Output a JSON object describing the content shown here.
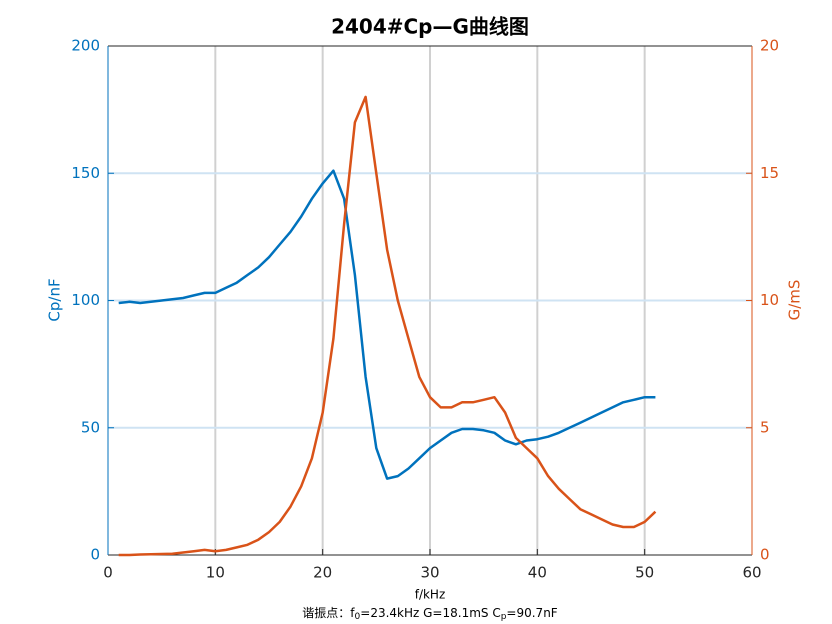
{
  "chart_data": {
    "type": "line",
    "title": "2404#Cp—G曲线图",
    "xlabel": "f/kHz",
    "ylabel": "Cp/nF",
    "y2label": "G/mS",
    "annotation": [
      "谐振点：f",
      "0",
      "=23.4kHz   G=18.1mS   C",
      "p",
      "=90.7nF"
    ],
    "x": [
      1,
      2,
      3,
      4,
      5,
      6,
      7,
      8,
      9,
      10,
      11,
      12,
      13,
      14,
      15,
      16,
      17,
      18,
      19,
      20,
      21,
      22,
      23,
      24,
      25,
      26,
      27,
      28,
      29,
      30,
      31,
      32,
      33,
      34,
      35,
      36,
      37,
      38,
      39,
      40,
      41,
      42,
      43,
      44,
      45,
      46,
      47,
      48,
      49,
      50,
      51
    ],
    "series": [
      {
        "name": "Cp",
        "color": "#0072BD",
        "axis": "y",
        "values": [
          99,
          99.5,
          99,
          99.5,
          100,
          100.5,
          101,
          102,
          103,
          103,
          105,
          107,
          110,
          113,
          117,
          122,
          127,
          133,
          140,
          146,
          151,
          140,
          110,
          70,
          42,
          30,
          31,
          34,
          38,
          42,
          45,
          48,
          49.5,
          49.5,
          49,
          48,
          45,
          43.5,
          45,
          45.5,
          46.5,
          48,
          50,
          52,
          54,
          56,
          58,
          60,
          61,
          62,
          62
        ]
      },
      {
        "name": "G",
        "color": "#D95319",
        "axis": "y2",
        "values": [
          0,
          0,
          0.02,
          0.03,
          0.04,
          0.05,
          0.1,
          0.15,
          0.2,
          0.15,
          0.2,
          0.3,
          0.4,
          0.6,
          0.9,
          1.3,
          1.9,
          2.7,
          3.8,
          5.6,
          8.5,
          13,
          17,
          18,
          15,
          12,
          10,
          8.5,
          7,
          6.2,
          5.8,
          5.8,
          6,
          6,
          6.1,
          6.2,
          5.6,
          4.6,
          4.2,
          3.8,
          3.1,
          2.6,
          2.2,
          1.8,
          1.6,
          1.4,
          1.2,
          1.1,
          1.1,
          1.3,
          1.7
        ]
      }
    ],
    "xlim": [
      0,
      60
    ],
    "xticks": [
      0,
      10,
      20,
      30,
      40,
      50,
      60
    ],
    "ylim": [
      0,
      200
    ],
    "yticks": [
      0,
      50,
      100,
      150,
      200
    ],
    "y2lim": [
      0,
      20
    ],
    "y2ticks": [
      0,
      5,
      10,
      15,
      20
    ],
    "grid": true
  }
}
